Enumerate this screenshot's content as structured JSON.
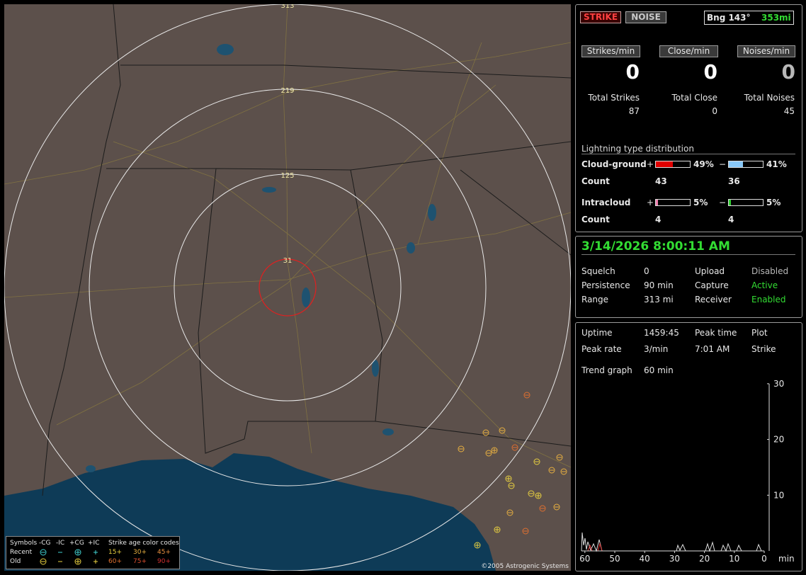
{
  "map": {
    "rings": [
      "313",
      "219",
      "125",
      "31"
    ],
    "legend": {
      "header": [
        "Symbols",
        "-CG",
        "-IC",
        "+CG",
        "+IC",
        "Strike age color codes"
      ],
      "rows": [
        {
          "label": "Recent",
          "ages": [
            "15+",
            "30+",
            "45+"
          ]
        },
        {
          "label": "Old",
          "ages": [
            "60+",
            "75+",
            "90+"
          ]
        }
      ]
    },
    "copyright": "©2005 Astrogenic Systems"
  },
  "status": {
    "buttons": [
      "STRIKE",
      "NOISE"
    ],
    "bearing": "Bng 143°",
    "distance": "353mi",
    "rates": [
      {
        "label": "Strikes/min",
        "value": 0
      },
      {
        "label": "Close/min",
        "value": 0
      },
      {
        "label": "Noises/min",
        "value": 0
      }
    ],
    "totals": [
      {
        "label": "Total Strikes",
        "value": 87
      },
      {
        "label": "Total Close",
        "value": 0
      },
      {
        "label": "Total Noises",
        "value": 45
      }
    ],
    "distribution": {
      "title": "Lightning type distribution",
      "signs": [
        "+",
        "−"
      ],
      "count_label": "Count",
      "rows": [
        {
          "type": "Cloud-ground",
          "plus": "49%",
          "minus": "41%",
          "plus_count": 43,
          "minus_count": 36
        },
        {
          "type": "Intracloud",
          "plus": "5%",
          "minus": "5%",
          "plus_count": 4,
          "minus_count": 4
        }
      ]
    }
  },
  "clock": {
    "datetime": "3/14/2026 8:00:11 AM",
    "rows": [
      [
        "Squelch",
        "0",
        "Upload",
        "Disabled"
      ],
      [
        "Persistence",
        "90 min",
        "Capture",
        "Active"
      ],
      [
        "Range",
        "313 mi",
        "Receiver",
        "Enabled"
      ]
    ]
  },
  "stats": {
    "rows": [
      [
        "Uptime",
        "1459:45",
        "Peak time",
        "Plot"
      ],
      [
        "Peak rate",
        "3/min",
        "7:01 AM",
        "Strike"
      ]
    ],
    "trend_label": "Trend graph",
    "trend_window": "60 min",
    "trend": {
      "yticks": [
        30,
        20,
        10
      ],
      "xticks": [
        60,
        50,
        40,
        30,
        20,
        10,
        0
      ],
      "x_unit": "min"
    }
  }
}
